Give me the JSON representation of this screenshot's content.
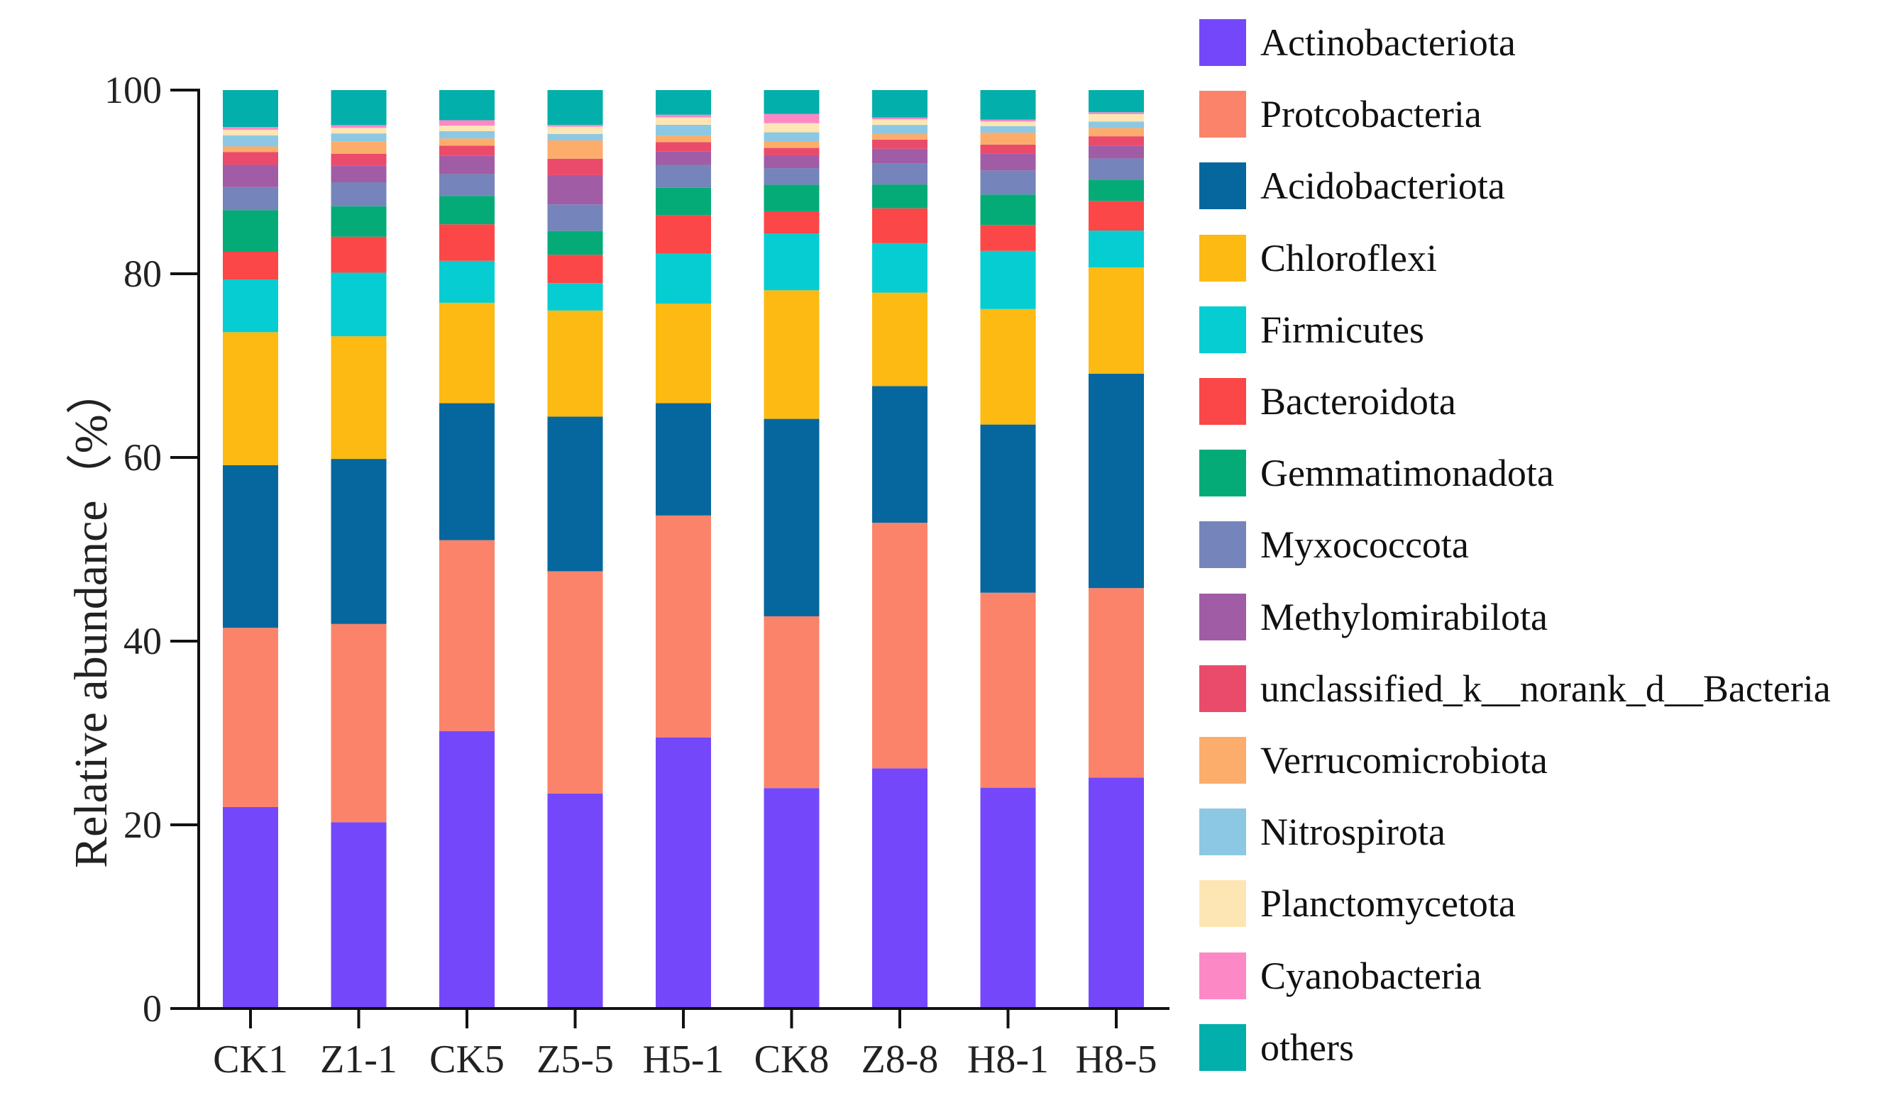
{
  "chart_data": {
    "type": "bar",
    "stacked": true,
    "categories": [
      "CK1",
      "Z1-1",
      "CK5",
      "Z5-5",
      "H5-1",
      "CK8",
      "Z8-8",
      "H8-1",
      "H8-5"
    ],
    "ylabel": "Relative abundance（%）",
    "xlabel": "",
    "ylim": [
      0,
      100
    ],
    "yticks": [
      "0",
      "20",
      "40",
      "60",
      "80",
      "100"
    ],
    "grid": false,
    "legend_position": "right",
    "series": [
      {
        "name": "Actinobacteriota",
        "color": "#7448FA",
        "values": [
          21.8,
          20.2,
          30.4,
          23.5,
          29.7,
          24.0,
          26.2,
          23.9,
          25.0
        ]
      },
      {
        "name": "Protcobacteria",
        "color": "#FB836A",
        "values": [
          19.4,
          21.5,
          20.9,
          24.3,
          24.3,
          18.7,
          26.8,
          21.1,
          20.5
        ]
      },
      {
        "name": "Acidobacteriota",
        "color": "#06679E",
        "values": [
          17.6,
          17.9,
          15.0,
          16.9,
          12.3,
          21.5,
          14.9,
          18.2,
          23.2
        ]
      },
      {
        "name": "Chloroflexi",
        "color": "#FCBA13",
        "values": [
          14.4,
          13.3,
          11.0,
          11.6,
          10.9,
          14.0,
          10.2,
          12.5,
          11.5
        ]
      },
      {
        "name": "Firmicutes",
        "color": "#06CDD1",
        "values": [
          5.7,
          6.9,
          4.6,
          3.0,
          5.5,
          6.2,
          5.4,
          6.3,
          4.0
        ]
      },
      {
        "name": "Bacteroidota",
        "color": "#FB4747",
        "values": [
          3.0,
          3.9,
          4.0,
          3.1,
          4.2,
          2.4,
          3.8,
          2.8,
          3.2
        ]
      },
      {
        "name": "Gemmatimonadota",
        "color": "#04AB77",
        "values": [
          4.5,
          3.3,
          3.1,
          2.6,
          3.0,
          2.9,
          2.6,
          3.3,
          2.3
        ]
      },
      {
        "name": "Myxococcota",
        "color": "#7584BA",
        "values": [
          2.5,
          2.6,
          2.4,
          2.9,
          2.5,
          1.8,
          2.3,
          2.6,
          2.3
        ]
      },
      {
        "name": "Methylomirabilota",
        "color": "#A15CA6",
        "values": [
          2.4,
          1.8,
          2.0,
          3.2,
          1.5,
          1.4,
          1.6,
          1.8,
          1.4
        ]
      },
      {
        "name": "unclassified_k__norank_d__Bacteria",
        "color": "#EA4B6A",
        "values": [
          1.4,
          1.3,
          1.1,
          1.8,
          1.0,
          0.8,
          1.0,
          1.0,
          1.0
        ]
      },
      {
        "name": "Verrucomicrobiota",
        "color": "#FCAD6B",
        "values": [
          0.6,
          1.3,
          0.8,
          2.0,
          0.7,
          0.7,
          0.6,
          1.3,
          0.9
        ]
      },
      {
        "name": "Nitrospirota",
        "color": "#8CC8E3",
        "values": [
          1.2,
          0.9,
          0.8,
          0.7,
          1.2,
          1.0,
          1.0,
          0.7,
          0.7
        ]
      },
      {
        "name": "Planctomycetota",
        "color": "#FDE6B4",
        "values": [
          0.6,
          0.6,
          0.6,
          0.8,
          0.8,
          1.0,
          0.6,
          0.5,
          0.8
        ]
      },
      {
        "name": "Cyanobacteria",
        "color": "#FD88C6",
        "values": [
          0.3,
          0.3,
          0.6,
          0.2,
          0.3,
          1.0,
          0.2,
          0.2,
          0.2
        ]
      },
      {
        "name": "others",
        "color": "#02AFAA",
        "values": [
          4.0,
          3.8,
          3.3,
          3.8,
          2.7,
          2.6,
          3.0,
          3.2,
          2.4
        ]
      }
    ]
  }
}
